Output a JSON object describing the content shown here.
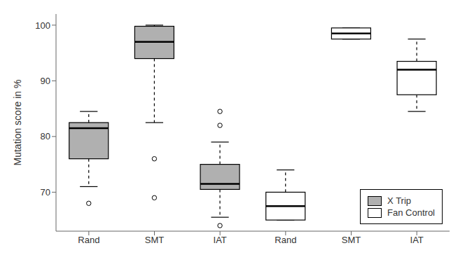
{
  "chart_data": {
    "type": "box",
    "title": "",
    "ylabel": "Mutation score in %",
    "categories": [
      "Rand",
      "SMT",
      "IAT",
      "Rand",
      "SMT",
      "IAT"
    ],
    "series": [
      {
        "name": "X Trip",
        "color": "#b0b0b0",
        "values": [
          {
            "q1": 76.0,
            "median": 81.5,
            "q3": 82.5,
            "whislo": 71.0,
            "whishi": 84.5,
            "fliers": [
              68.0
            ]
          },
          {
            "q1": 94.0,
            "median": 97.0,
            "q3": 99.8,
            "whislo": 82.5,
            "whishi": 100.0,
            "fliers": [
              76.0,
              69.0
            ]
          },
          {
            "q1": 70.5,
            "median": 71.5,
            "q3": 75.0,
            "whislo": 65.5,
            "whishi": 79.0,
            "fliers": [
              84.5,
              82.0,
              64.0
            ]
          },
          null,
          null,
          null
        ]
      },
      {
        "name": "Fan Control",
        "color": "#ffffff",
        "values": [
          null,
          null,
          null,
          {
            "q1": 65.0,
            "median": 67.5,
            "q3": 70.0,
            "whislo": 65.0,
            "whishi": 74.0,
            "fliers": []
          },
          {
            "q1": 97.5,
            "median": 98.5,
            "q3": 99.5,
            "whislo": 97.5,
            "whishi": 99.5,
            "fliers": []
          },
          {
            "q1": 87.5,
            "median": 92.0,
            "q3": 93.5,
            "whislo": 84.5,
            "whishi": 97.5,
            "fliers": []
          }
        ]
      }
    ],
    "ylim": [
      63,
      102
    ],
    "yticks": [
      70,
      80,
      90,
      100
    ],
    "legend": "lower right"
  }
}
